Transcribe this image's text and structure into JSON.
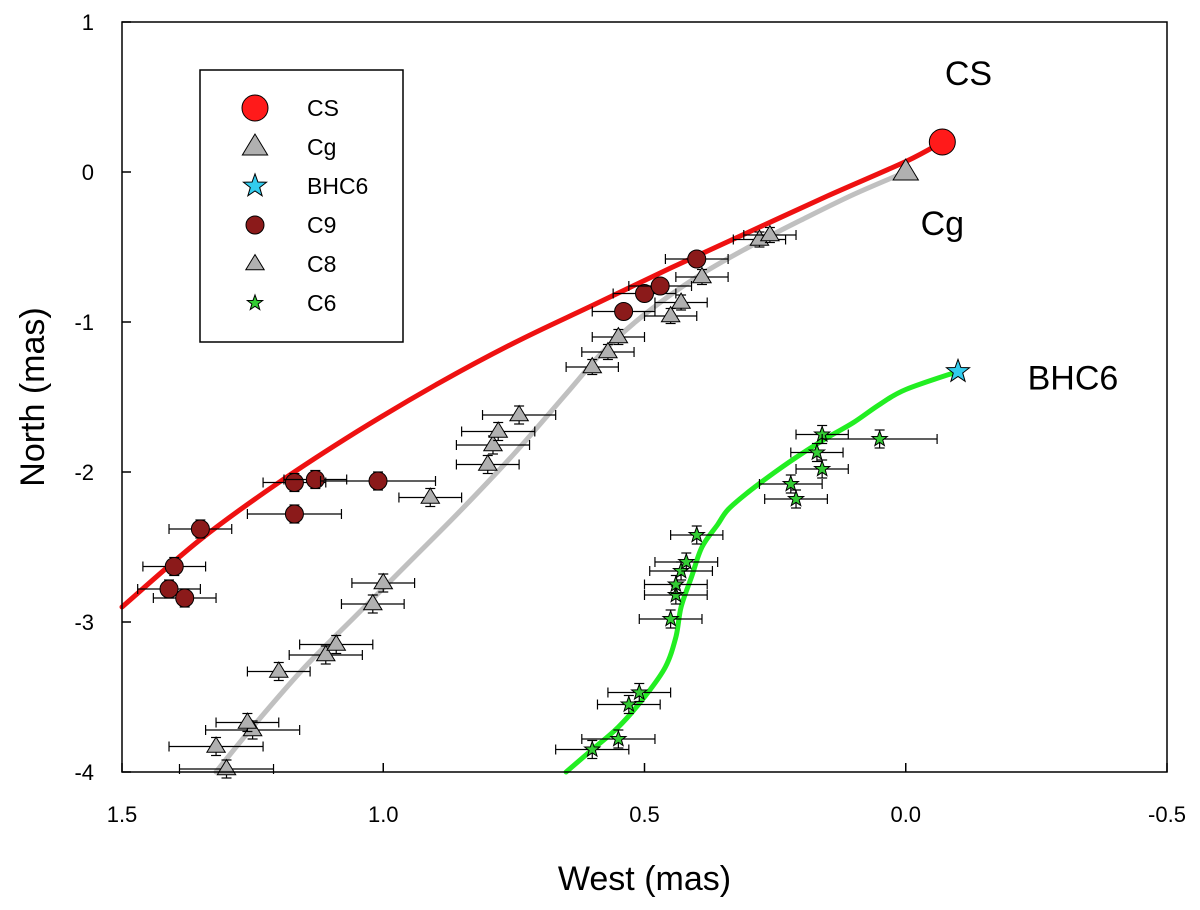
{
  "chart_data": {
    "type": "scatter",
    "xlabel": "West (mas)",
    "ylabel": "North (mas)",
    "xlim": [
      1.5,
      -0.5
    ],
    "ylim": [
      -4,
      1
    ],
    "x_ticks": [
      1.5,
      1.0,
      0.5,
      0.0,
      -0.5
    ],
    "x_tick_labels": [
      "1.5",
      "1.0",
      "0.5",
      "0.0",
      "-0.5"
    ],
    "y_ticks": [
      1,
      0,
      -1,
      -2,
      -3,
      -4
    ],
    "y_tick_labels": [
      "1",
      "0",
      "-1",
      "-2",
      "-3",
      "-4"
    ],
    "grid": false,
    "legend_position": "top-left",
    "legend": [
      {
        "label": "CS",
        "marker": "circle-large",
        "color": "#ff1a1a"
      },
      {
        "label": "Cg",
        "marker": "triangle-large",
        "color": "#b0b0b0"
      },
      {
        "label": "BHC6",
        "marker": "star-large",
        "color": "#33ccee"
      },
      {
        "label": "C9",
        "marker": "circle",
        "color": "#8b1a1a"
      },
      {
        "label": "C8",
        "marker": "triangle",
        "color": "#b0b0b0"
      },
      {
        "label": "C6",
        "marker": "star",
        "color": "#33cc33"
      }
    ],
    "annotations": [
      {
        "text": "CS",
        "x": -0.12,
        "y": 0.58
      },
      {
        "text": "Cg",
        "x": -0.07,
        "y": -0.42
      },
      {
        "text": "BHC6",
        "x": -0.32,
        "y": -1.45
      }
    ],
    "cores": [
      {
        "name": "CS",
        "x": -0.07,
        "y": 0.2,
        "marker": "circle",
        "color": "#ff1a1a"
      },
      {
        "name": "Cg",
        "x": 0.0,
        "y": 0.0,
        "marker": "triangle",
        "color": "#b0b0b0"
      },
      {
        "name": "BHC6",
        "x": -0.1,
        "y": -1.33,
        "marker": "star",
        "color": "#33ccee"
      }
    ],
    "series": [
      {
        "name": "C9",
        "marker": "circle",
        "color": "#8b1a1a",
        "points": [
          {
            "x": 1.41,
            "y": -2.78,
            "xerr": 0.06,
            "yerr": 0.06
          },
          {
            "x": 1.38,
            "y": -2.84,
            "xerr": 0.06,
            "yerr": 0.06
          },
          {
            "x": 1.4,
            "y": -2.63,
            "xerr": 0.06,
            "yerr": 0.06
          },
          {
            "x": 1.35,
            "y": -2.38,
            "xerr": 0.06,
            "yerr": 0.06
          },
          {
            "x": 1.17,
            "y": -2.28,
            "xerr": 0.09,
            "yerr": 0.06
          },
          {
            "x": 1.17,
            "y": -2.07,
            "xerr": 0.06,
            "yerr": 0.06
          },
          {
            "x": 1.13,
            "y": -2.05,
            "xerr": 0.06,
            "yerr": 0.06
          },
          {
            "x": 1.01,
            "y": -2.06,
            "xerr": 0.11,
            "yerr": 0.06
          },
          {
            "x": 0.54,
            "y": -0.93,
            "xerr": 0.06,
            "yerr": 0.05
          },
          {
            "x": 0.5,
            "y": -0.81,
            "xerr": 0.06,
            "yerr": 0.05
          },
          {
            "x": 0.47,
            "y": -0.76,
            "xerr": 0.06,
            "yerr": 0.05
          },
          {
            "x": 0.4,
            "y": -0.58,
            "xerr": 0.06,
            "yerr": 0.05
          }
        ]
      },
      {
        "name": "C8",
        "marker": "triangle",
        "color": "#b0b0b0",
        "points": [
          {
            "x": 1.3,
            "y": -3.98,
            "xerr": 0.09,
            "yerr": 0.06
          },
          {
            "x": 1.32,
            "y": -3.83,
            "xerr": 0.09,
            "yerr": 0.06
          },
          {
            "x": 1.25,
            "y": -3.72,
            "xerr": 0.09,
            "yerr": 0.06
          },
          {
            "x": 1.26,
            "y": -3.67,
            "xerr": 0.06,
            "yerr": 0.06
          },
          {
            "x": 1.2,
            "y": -3.33,
            "xerr": 0.06,
            "yerr": 0.06
          },
          {
            "x": 1.11,
            "y": -3.22,
            "xerr": 0.07,
            "yerr": 0.06
          },
          {
            "x": 1.09,
            "y": -3.15,
            "xerr": 0.07,
            "yerr": 0.06
          },
          {
            "x": 1.02,
            "y": -2.88,
            "xerr": 0.06,
            "yerr": 0.06
          },
          {
            "x": 1.0,
            "y": -2.74,
            "xerr": 0.06,
            "yerr": 0.06
          },
          {
            "x": 0.91,
            "y": -2.17,
            "xerr": 0.06,
            "yerr": 0.06
          },
          {
            "x": 0.8,
            "y": -1.95,
            "xerr": 0.06,
            "yerr": 0.06
          },
          {
            "x": 0.79,
            "y": -1.82,
            "xerr": 0.07,
            "yerr": 0.06
          },
          {
            "x": 0.78,
            "y": -1.73,
            "xerr": 0.07,
            "yerr": 0.06
          },
          {
            "x": 0.74,
            "y": -1.62,
            "xerr": 0.07,
            "yerr": 0.06
          },
          {
            "x": 0.6,
            "y": -1.3,
            "xerr": 0.05,
            "yerr": 0.05
          },
          {
            "x": 0.57,
            "y": -1.2,
            "xerr": 0.05,
            "yerr": 0.05
          },
          {
            "x": 0.55,
            "y": -1.1,
            "xerr": 0.05,
            "yerr": 0.05
          },
          {
            "x": 0.45,
            "y": -0.96,
            "xerr": 0.05,
            "yerr": 0.05
          },
          {
            "x": 0.43,
            "y": -0.87,
            "xerr": 0.05,
            "yerr": 0.05
          },
          {
            "x": 0.39,
            "y": -0.7,
            "xerr": 0.05,
            "yerr": 0.05
          },
          {
            "x": 0.28,
            "y": -0.45,
            "xerr": 0.05,
            "yerr": 0.05
          },
          {
            "x": 0.26,
            "y": -0.42,
            "xerr": 0.05,
            "yerr": 0.05
          }
        ]
      },
      {
        "name": "C6",
        "marker": "star",
        "color": "#33cc33",
        "points": [
          {
            "x": 0.6,
            "y": -3.85,
            "xerr": 0.07,
            "yerr": 0.06
          },
          {
            "x": 0.55,
            "y": -3.78,
            "xerr": 0.07,
            "yerr": 0.06
          },
          {
            "x": 0.53,
            "y": -3.55,
            "xerr": 0.06,
            "yerr": 0.06
          },
          {
            "x": 0.51,
            "y": -3.47,
            "xerr": 0.06,
            "yerr": 0.06
          },
          {
            "x": 0.45,
            "y": -2.98,
            "xerr": 0.06,
            "yerr": 0.06
          },
          {
            "x": 0.44,
            "y": -2.82,
            "xerr": 0.06,
            "yerr": 0.06
          },
          {
            "x": 0.44,
            "y": -2.75,
            "xerr": 0.06,
            "yerr": 0.06
          },
          {
            "x": 0.43,
            "y": -2.66,
            "xerr": 0.06,
            "yerr": 0.06
          },
          {
            "x": 0.42,
            "y": -2.6,
            "xerr": 0.06,
            "yerr": 0.06
          },
          {
            "x": 0.4,
            "y": -2.42,
            "xerr": 0.05,
            "yerr": 0.06
          },
          {
            "x": 0.21,
            "y": -2.18,
            "xerr": 0.06,
            "yerr": 0.06
          },
          {
            "x": 0.22,
            "y": -2.08,
            "xerr": 0.06,
            "yerr": 0.06
          },
          {
            "x": 0.16,
            "y": -1.98,
            "xerr": 0.05,
            "yerr": 0.06
          },
          {
            "x": 0.17,
            "y": -1.87,
            "xerr": 0.05,
            "yerr": 0.06
          },
          {
            "x": 0.16,
            "y": -1.75,
            "xerr": 0.05,
            "yerr": 0.06
          },
          {
            "x": 0.05,
            "y": -1.78,
            "xerr": 0.11,
            "yerr": 0.06
          }
        ]
      }
    ],
    "fits": [
      {
        "name": "CS fit",
        "color": "#ee1111",
        "x": [
          1.5,
          1.35,
          1.2,
          1.05,
          0.9,
          0.75,
          0.6,
          0.45,
          0.3,
          0.15,
          0.0,
          -0.07
        ],
        "y": [
          -2.9,
          -2.45,
          -2.07,
          -1.73,
          -1.42,
          -1.14,
          -0.89,
          -0.64,
          -0.4,
          -0.16,
          0.07,
          0.2
        ]
      },
      {
        "name": "Cg fit",
        "color": "#c0c0c0",
        "x": [
          1.32,
          1.25,
          1.15,
          1.05,
          0.95,
          0.85,
          0.75,
          0.65,
          0.58,
          0.5,
          0.4,
          0.3,
          0.2,
          0.1,
          0.0
        ],
        "y": [
          -4.0,
          -3.7,
          -3.3,
          -2.95,
          -2.6,
          -2.25,
          -1.88,
          -1.48,
          -1.2,
          -0.95,
          -0.7,
          -0.5,
          -0.32,
          -0.15,
          0.0
        ]
      },
      {
        "name": "BHC6 fit",
        "color": "#22ee22",
        "x": [
          0.65,
          0.6,
          0.55,
          0.5,
          0.46,
          0.44,
          0.43,
          0.41,
          0.39,
          0.36,
          0.34,
          0.3,
          0.25,
          0.2,
          0.15,
          0.1,
          0.05,
          0.0,
          -0.1
        ],
        "y": [
          -4.0,
          -3.85,
          -3.7,
          -3.5,
          -3.3,
          -3.1,
          -2.9,
          -2.7,
          -2.5,
          -2.35,
          -2.25,
          -2.13,
          -2.0,
          -1.88,
          -1.77,
          -1.67,
          -1.55,
          -1.45,
          -1.33
        ]
      }
    ]
  }
}
